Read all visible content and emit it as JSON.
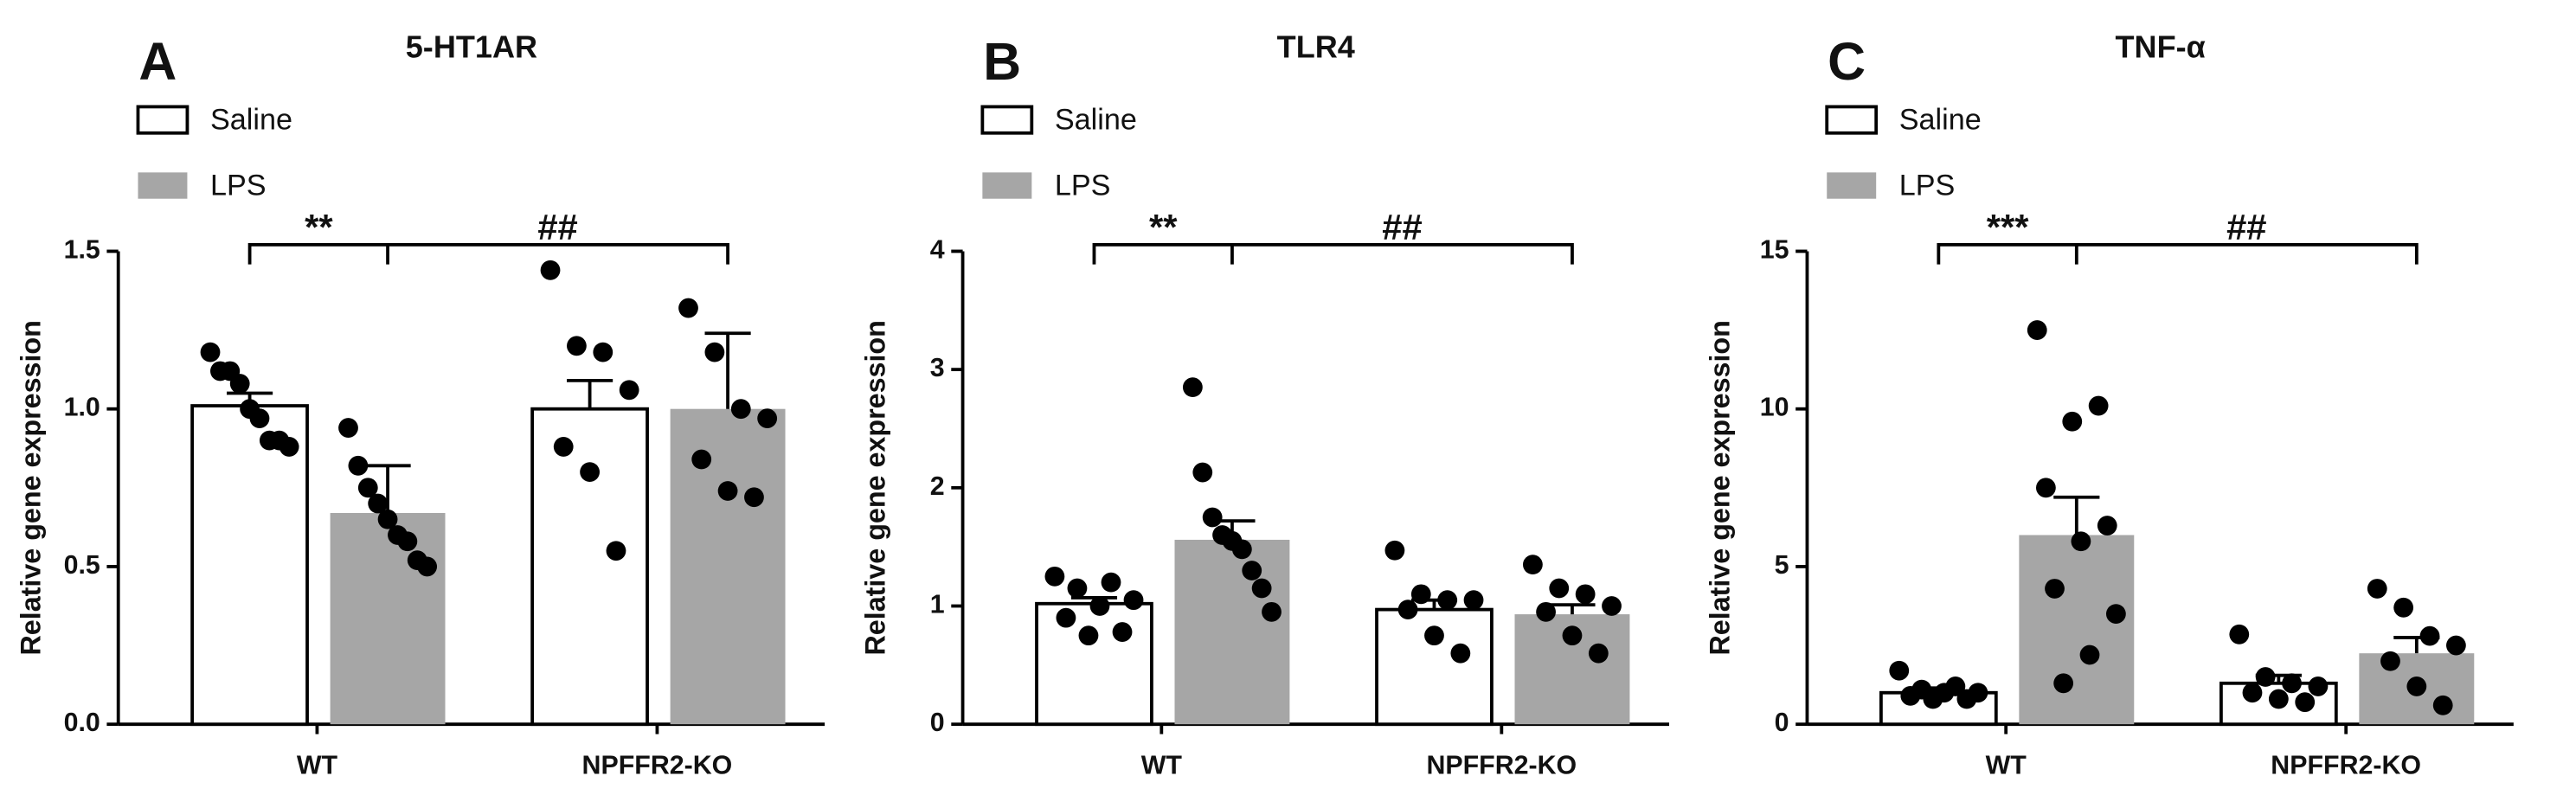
{
  "chart_data": [
    {
      "type": "bar",
      "panel": "A",
      "title": "5-HT1AR",
      "ylabel": "Relative gene expression",
      "categories": [
        "WT",
        "NPFFR2-KO"
      ],
      "ylim": [
        0,
        1.5
      ],
      "yticks": [
        {
          "value": 0,
          "label": "0.0"
        },
        0.5,
        {
          "value": 1,
          "label": "1.0"
        },
        1.5
      ],
      "annotations": [
        "**",
        "##"
      ],
      "series": [
        {
          "name": "Saline",
          "color": "#ffffff",
          "values": [
            1.01,
            1.0
          ],
          "errors": [
            0.04,
            0.09
          ],
          "points": [
            [
              1.18,
              1.12,
              1.12,
              1.08,
              1.0,
              0.97,
              0.9,
              0.9,
              0.88
            ],
            [
              1.44,
              1.2,
              1.18,
              1.06,
              0.88,
              0.8,
              0.55
            ]
          ]
        },
        {
          "name": "LPS",
          "color": "#a6a6a6",
          "values": [
            0.67,
            1.0
          ],
          "errors": [
            0.15,
            0.24
          ],
          "points": [
            [
              0.94,
              0.82,
              0.75,
              0.7,
              0.65,
              0.6,
              0.58,
              0.52,
              0.5
            ],
            [
              1.32,
              1.18,
              1.0,
              0.97,
              0.84,
              0.74,
              0.72
            ]
          ]
        }
      ]
    },
    {
      "type": "bar",
      "panel": "B",
      "title": "TLR4",
      "ylabel": "Relative gene expression",
      "categories": [
        "WT",
        "NPFFR2-KO"
      ],
      "ylim": [
        0,
        4
      ],
      "yticks": [
        0,
        1,
        2,
        3,
        4
      ],
      "annotations": [
        "**",
        "##"
      ],
      "series": [
        {
          "name": "Saline",
          "color": "#ffffff",
          "values": [
            1.02,
            0.97
          ],
          "errors": [
            0.05,
            0.08
          ],
          "points": [
            [
              1.25,
              1.2,
              1.15,
              1.05,
              1.0,
              0.9,
              0.78,
              0.75
            ],
            [
              1.47,
              1.1,
              1.05,
              1.05,
              0.97,
              0.75,
              0.6
            ]
          ]
        },
        {
          "name": "LPS",
          "color": "#a6a6a6",
          "values": [
            1.56,
            0.93
          ],
          "errors": [
            0.16,
            0.08
          ],
          "points": [
            [
              2.85,
              2.13,
              1.75,
              1.6,
              1.55,
              1.48,
              1.3,
              1.15,
              0.95
            ],
            [
              1.35,
              1.15,
              1.1,
              1.0,
              0.95,
              0.75,
              0.6
            ]
          ]
        }
      ]
    },
    {
      "type": "bar",
      "panel": "C",
      "title": "TNF-α",
      "ylabel": "Relative gene expression",
      "categories": [
        "WT",
        "NPFFR2-KO"
      ],
      "ylim": [
        0,
        15
      ],
      "yticks": [
        0,
        5,
        10,
        15
      ],
      "annotations": [
        "***",
        "##"
      ],
      "series": [
        {
          "name": "Saline",
          "color": "#ffffff",
          "values": [
            1.0,
            1.3
          ],
          "errors": [
            0.15,
            0.25
          ],
          "points": [
            [
              1.7,
              1.2,
              1.1,
              1.0,
              1.0,
              0.9,
              0.8,
              0.8
            ],
            [
              2.85,
              1.5,
              1.3,
              1.2,
              1.0,
              0.8,
              0.7
            ]
          ]
        },
        {
          "name": "LPS",
          "color": "#a6a6a6",
          "values": [
            6.0,
            2.25
          ],
          "errors": [
            1.2,
            0.5
          ],
          "points": [
            [
              12.5,
              10.1,
              9.6,
              7.5,
              6.3,
              5.8,
              4.3,
              3.5,
              2.2,
              1.3
            ],
            [
              4.3,
              3.7,
              2.8,
              2.5,
              2.0,
              1.2,
              0.6
            ]
          ]
        }
      ]
    }
  ]
}
